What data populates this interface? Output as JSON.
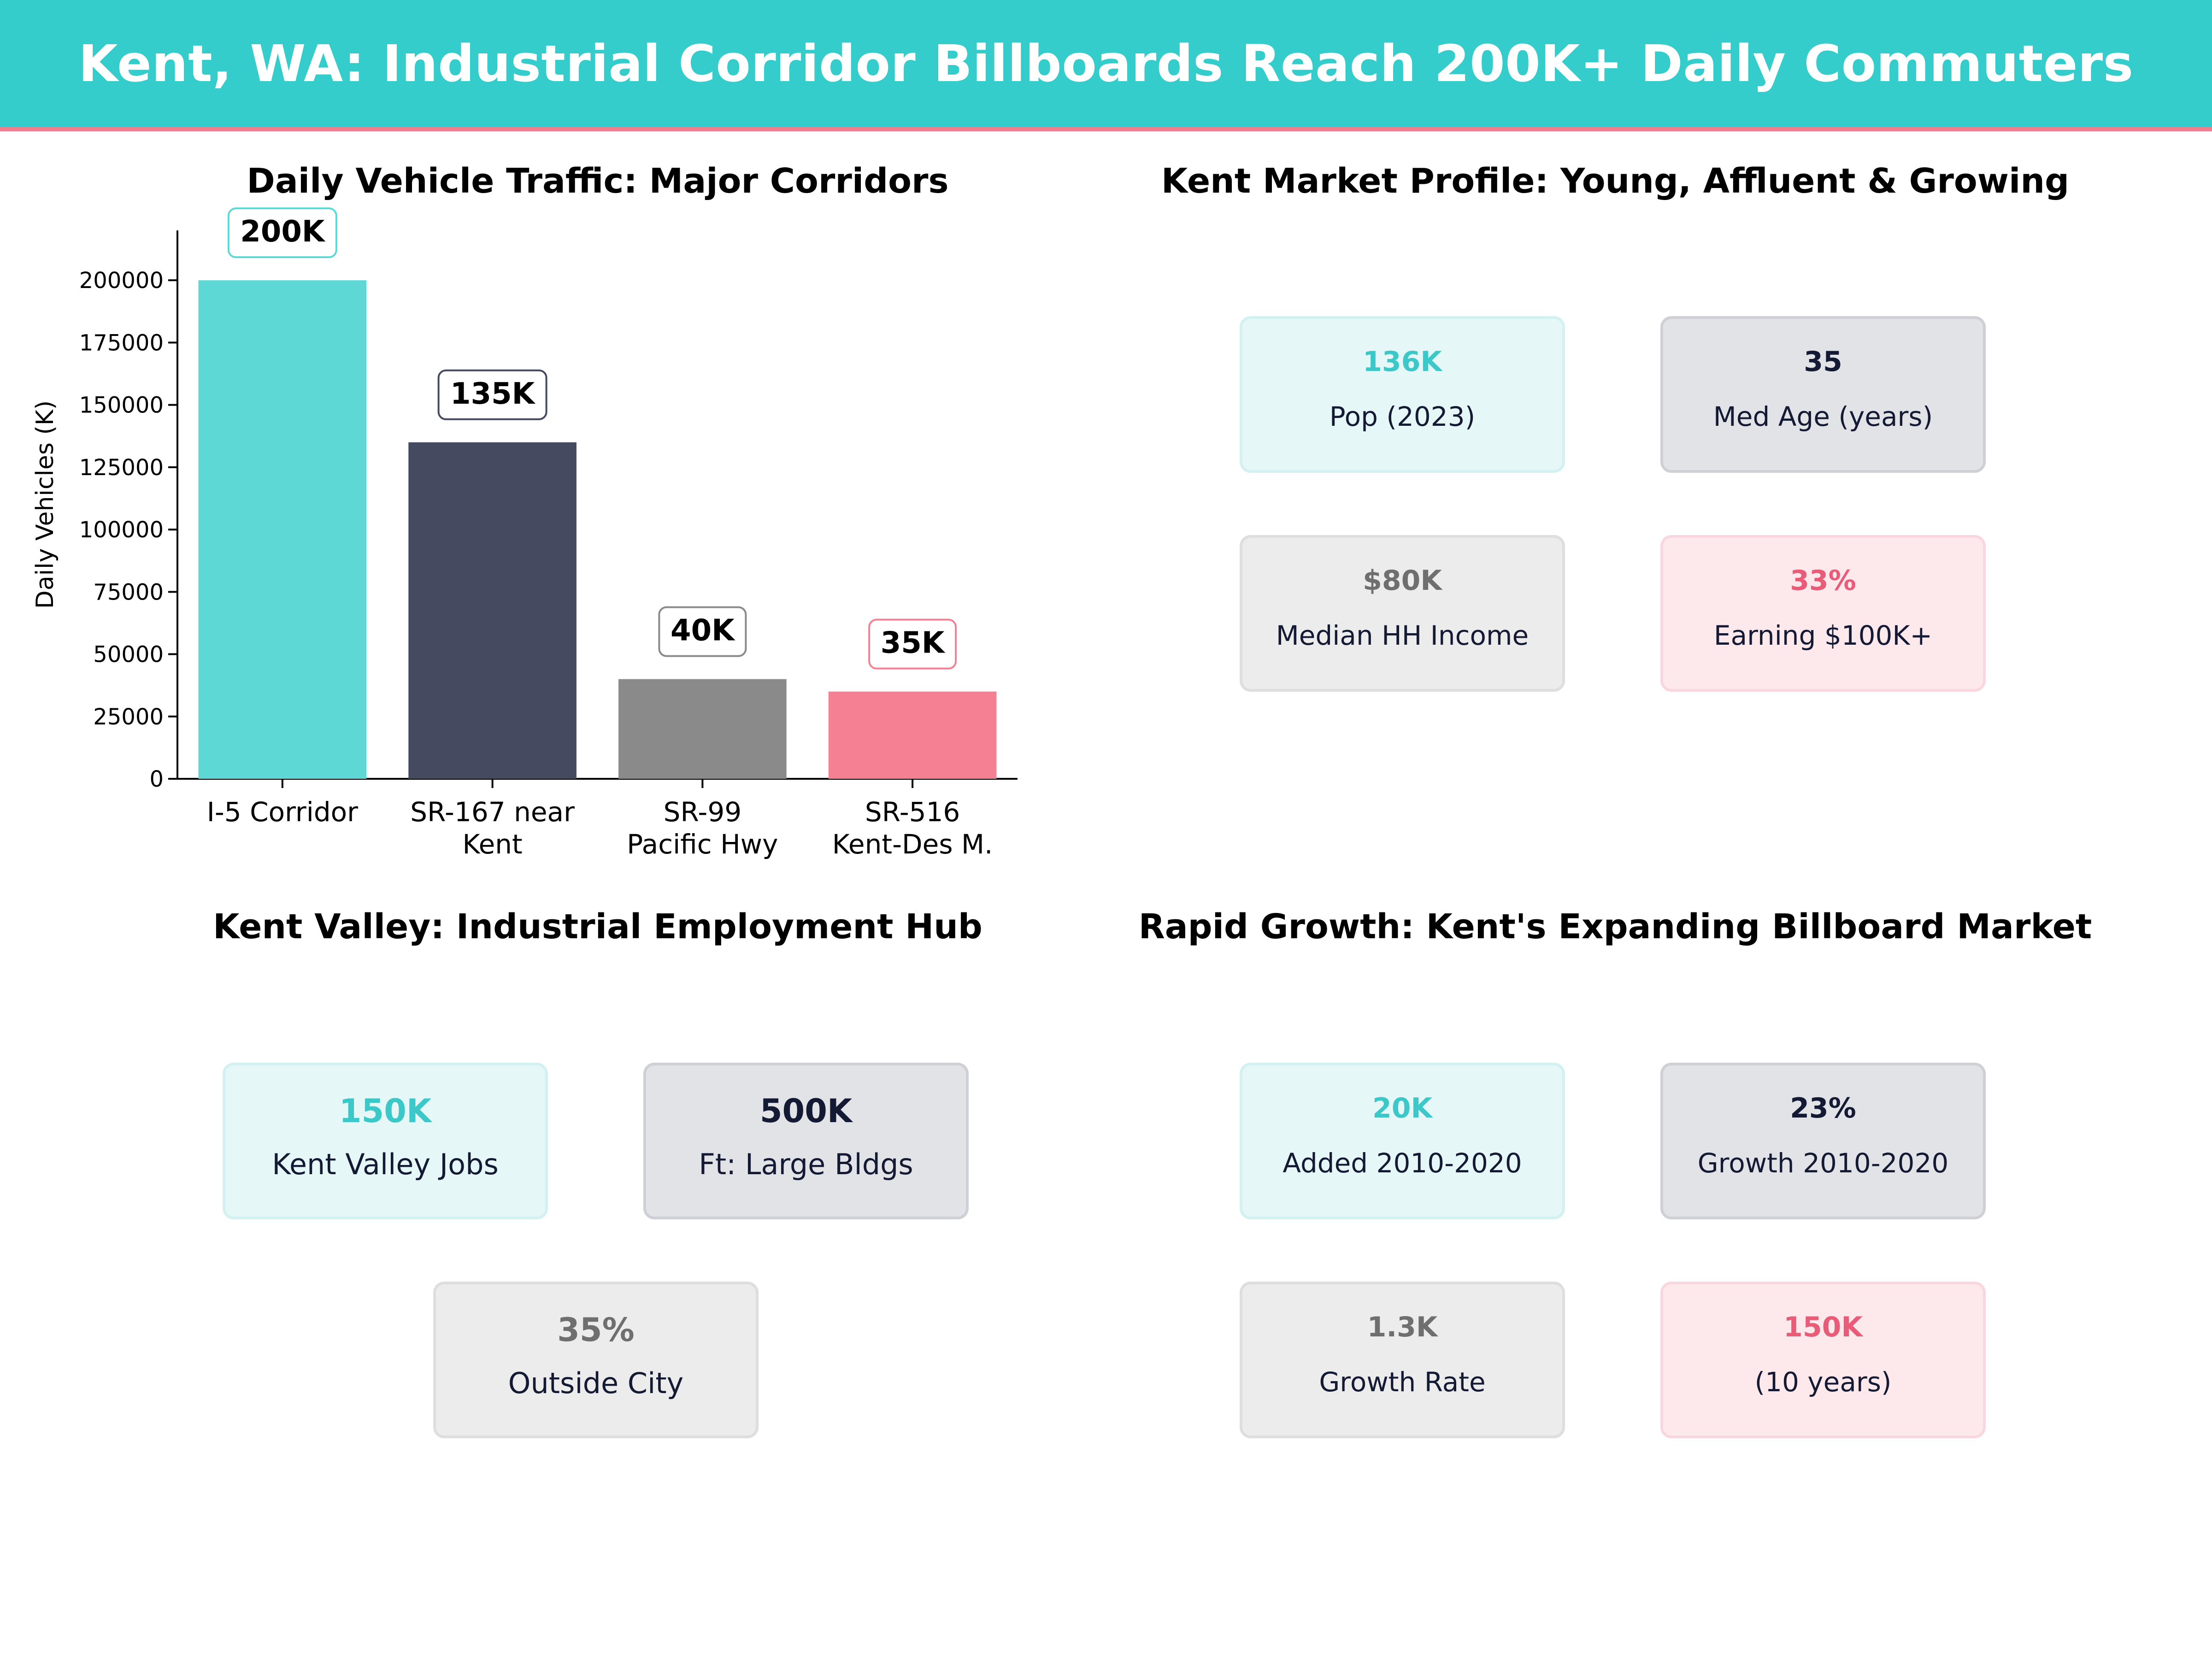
{
  "banner": {
    "title": "Kent, WA: Industrial Corridor Billboards Reach 200K+ Daily Commuters"
  },
  "colors": {
    "teal": "#5dd8d5",
    "navy": "#464a60",
    "gray": "#8a8a8a",
    "pink": "#f58094",
    "accent_teal": "#35cccc",
    "accent_pink": "#f0808f"
  },
  "chart_data": {
    "type": "bar",
    "title": "Daily Vehicle Traffic: Major Corridors",
    "ylabel": "Daily Vehicles (K)",
    "xlabel": "",
    "categories": [
      "I-5 Corridor",
      "SR-167 near\nKent",
      "SR-99\nPacific Hwy",
      "SR-516\nKent-Des M."
    ],
    "values": [
      200000,
      135000,
      40000,
      35000
    ],
    "data_labels": [
      "200K",
      "135K",
      "40K",
      "35K"
    ],
    "bar_colors": [
      "#5dd8d5",
      "#464a60",
      "#8a8a8a",
      "#f58094"
    ],
    "label_border_colors": [
      "#5dd8d5",
      "#464a60",
      "#8a8a8a",
      "#f58094"
    ],
    "ylim": [
      0,
      220000
    ],
    "yticks": [
      0,
      25000,
      50000,
      75000,
      100000,
      125000,
      150000,
      175000,
      200000
    ],
    "grid": false
  },
  "market_profile": {
    "title": "Kent Market Profile: Young, Affluent & Growing",
    "cards": [
      {
        "value": "136K",
        "label": "Pop (2023)"
      },
      {
        "value": "35",
        "label": "Med Age (years)"
      },
      {
        "value": "$80K",
        "label": "Median HH Income"
      },
      {
        "value": "33%",
        "label": "Earning $100K+"
      }
    ]
  },
  "employment": {
    "title": "Kent Valley: Industrial Employment Hub",
    "cards": [
      {
        "value": "150K",
        "label": "Kent Valley Jobs"
      },
      {
        "value": "500K",
        "label": "Ft: Large Bldgs"
      },
      {
        "value": "35%",
        "label": "Outside City"
      }
    ]
  },
  "growth": {
    "title": "Rapid Growth: Kent's Expanding Billboard Market",
    "cards": [
      {
        "value": "20K",
        "label": "Added 2010-2020"
      },
      {
        "value": "23%",
        "label": "Growth 2010-2020"
      },
      {
        "value": "1.3K",
        "label": "Growth Rate"
      },
      {
        "value": "150K",
        "label": "(10 years)"
      }
    ]
  }
}
